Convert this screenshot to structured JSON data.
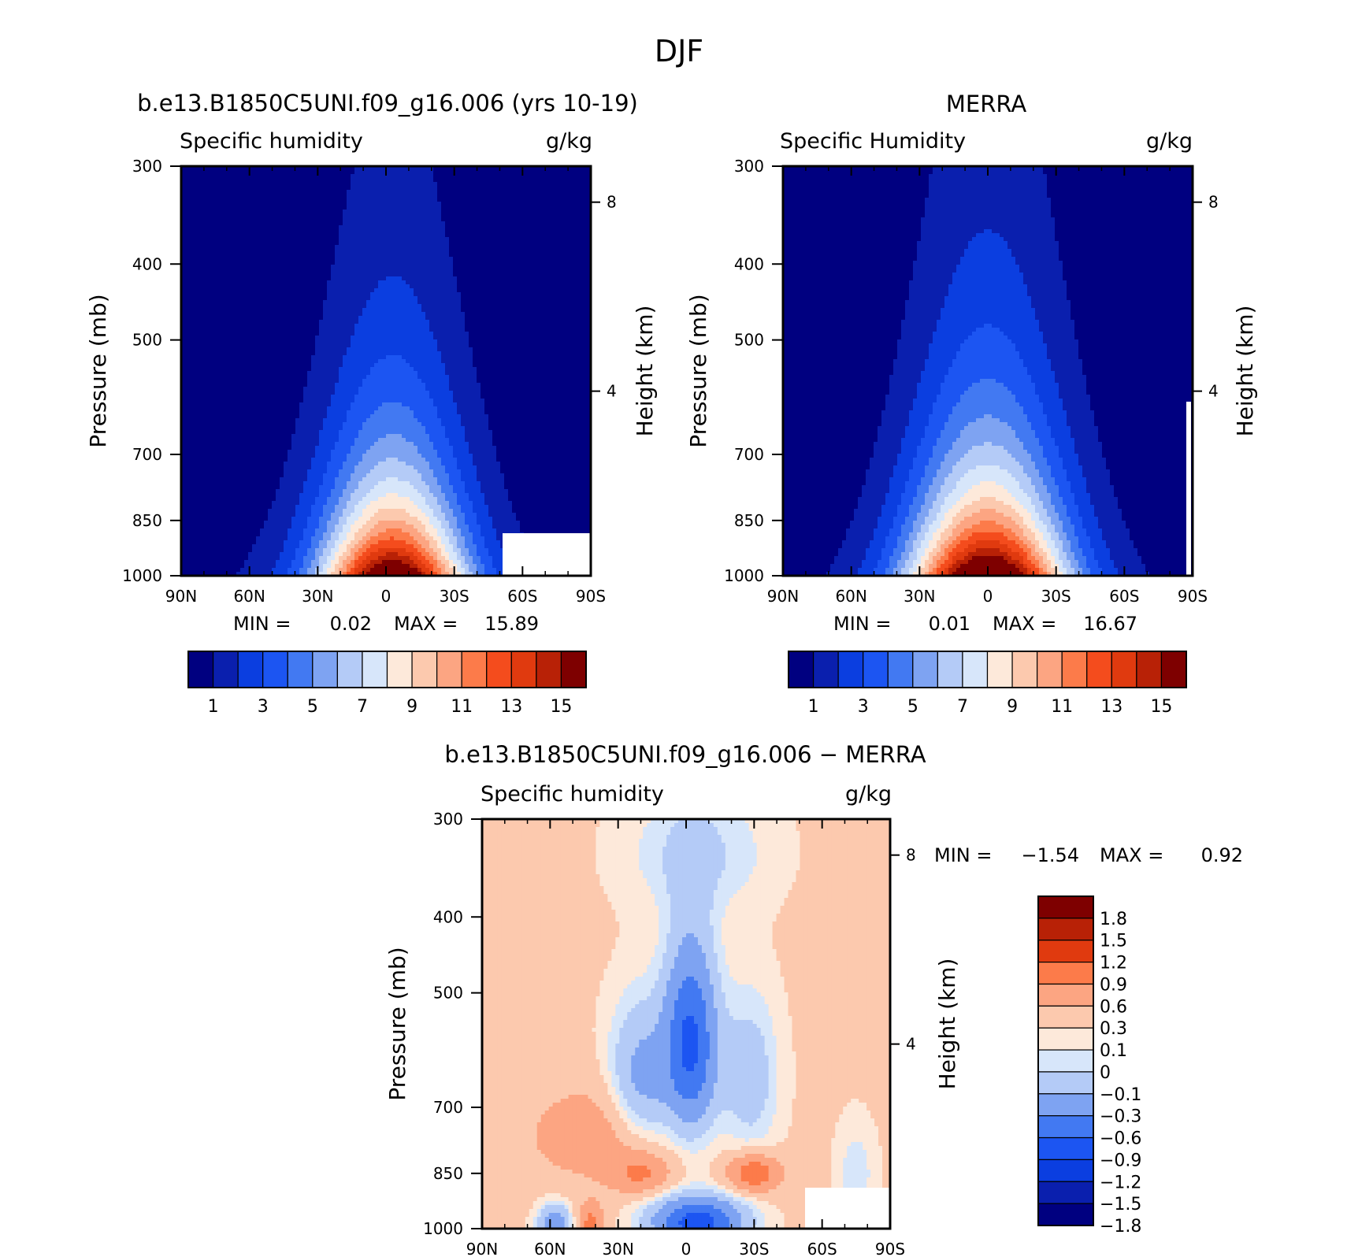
{
  "title": "DJF",
  "colors": {
    "seq": [
      "#000080",
      "#0a1fae",
      "#0b3ee0",
      "#1c55f2",
      "#4279f2",
      "#7ea3f2",
      "#b4cbf7",
      "#d7e6fa",
      "#fde9da",
      "#fcc9ae",
      "#fca582",
      "#fc7b4a",
      "#f44c1d",
      "#e03a0f",
      "#b82106",
      "#7e0000"
    ],
    "div": [
      "#7e0000",
      "#b82106",
      "#e03a0f",
      "#fc7b4a",
      "#fca582",
      "#fcc9ae",
      "#fde9da",
      "#d7e6fa",
      "#b4cbf7",
      "#7ea3f2",
      "#4279f2",
      "#1c55f2",
      "#0b3ee0",
      "#0a1fae",
      "#000080"
    ]
  },
  "chart_data": [
    {
      "type": "contour",
      "id": "model",
      "title": "b.e13.B1850C5UNI.f09_g16.006 (yrs 10-19)",
      "variable": "Specific humidity",
      "units": "g/kg",
      "ylabel": "Pressure (mb)",
      "ylabel_right": "Height (km)",
      "x_ticks": [
        "90N",
        "60N",
        "30N",
        "0",
        "30S",
        "60S",
        "90S"
      ],
      "p_ticks": [
        300,
        400,
        500,
        700,
        850,
        1000
      ],
      "z_ticks": [
        8,
        4
      ],
      "min_label": "MIN =",
      "min": "0.02",
      "max_label": "MAX =",
      "max": "15.89",
      "levels": [
        1,
        2,
        3,
        4,
        5,
        6,
        7,
        8,
        9,
        10,
        11,
        12,
        13,
        14,
        15
      ],
      "colorbar_labels": [
        "1",
        "3",
        "5",
        "7",
        "9",
        "11",
        "13",
        "15"
      ],
      "peak_value": 15.89,
      "peak_lat": -3,
      "lat_spread": 22,
      "vertical_decay_hpa": 270
    },
    {
      "type": "contour",
      "id": "obs",
      "title": "MERRA",
      "variable": "Specific Humidity",
      "units": "g/kg",
      "ylabel": "Pressure (mb)",
      "ylabel_right": "Height (km)",
      "x_ticks": [
        "90N",
        "60N",
        "30N",
        "0",
        "30S",
        "60S",
        "90S"
      ],
      "p_ticks": [
        300,
        400,
        500,
        700,
        850,
        1000
      ],
      "z_ticks": [
        8,
        4
      ],
      "min_label": "MIN =",
      "min": "0.01",
      "max_label": "MAX =",
      "max": "16.67",
      "levels": [
        1,
        2,
        3,
        4,
        5,
        6,
        7,
        8,
        9,
        10,
        11,
        12,
        13,
        14,
        15
      ],
      "colorbar_labels": [
        "1",
        "3",
        "5",
        "7",
        "9",
        "11",
        "13",
        "15"
      ],
      "peak_value": 16.67,
      "peak_lat": 0,
      "lat_spread": 24,
      "vertical_decay_hpa": 290
    },
    {
      "type": "contour",
      "id": "diff",
      "title": "b.e13.B1850C5UNI.f09_g16.006 − MERRA",
      "variable": "Specific humidity",
      "units": "g/kg",
      "ylabel": "Pressure (mb)",
      "ylabel_right": "Height (km)",
      "x_ticks": [
        "90N",
        "60N",
        "30N",
        "0",
        "30S",
        "60S",
        "90S"
      ],
      "p_ticks": [
        300,
        400,
        500,
        700,
        850,
        1000
      ],
      "z_ticks": [
        8,
        4
      ],
      "min_label": "MIN =",
      "min": "−1.54",
      "max_label": "MAX =",
      "max": "0.92",
      "levels": [
        -1.8,
        -1.5,
        -1.2,
        -0.9,
        -0.6,
        -0.3,
        -0.1,
        0,
        0.1,
        0.3,
        0.6,
        0.9,
        1.2,
        1.5,
        1.8
      ],
      "colorbar_labels": [
        "1.8",
        "1.5",
        "1.2",
        "0.9",
        "0.6",
        "0.3",
        "0.1",
        "0",
        "−0.1",
        "−0.3",
        "−0.6",
        "−0.9",
        "−1.2",
        "−1.5",
        "−1.8"
      ]
    }
  ]
}
